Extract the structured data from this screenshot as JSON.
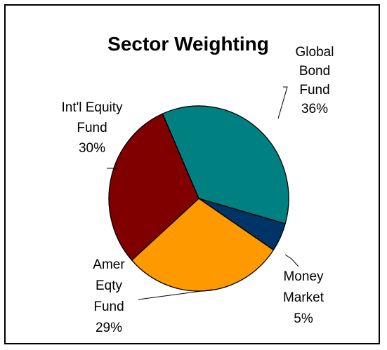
{
  "chart_data": {
    "type": "pie",
    "title": "Sector Weighting",
    "start_angle_deg": -23.8,
    "slices": [
      {
        "name": "Global Bond Fund",
        "label_lines": [
          "Global",
          "Bond",
          "Fund",
          "36%"
        ],
        "value": 36,
        "color": "#008080"
      },
      {
        "name": "Money Market",
        "label_lines": [
          "Money",
          "Market",
          "5%"
        ],
        "value": 5,
        "color": "#003366"
      },
      {
        "name": "Amer Eqty Fund",
        "label_lines": [
          "Amer",
          "Eqty",
          "Fund",
          "29%"
        ],
        "value": 29,
        "color": "#FF9900"
      },
      {
        "name": "Int'l Equity Fund",
        "label_lines": [
          "Int'l Equity",
          "Fund",
          "30%"
        ],
        "value": 30,
        "color": "#800000"
      }
    ]
  }
}
